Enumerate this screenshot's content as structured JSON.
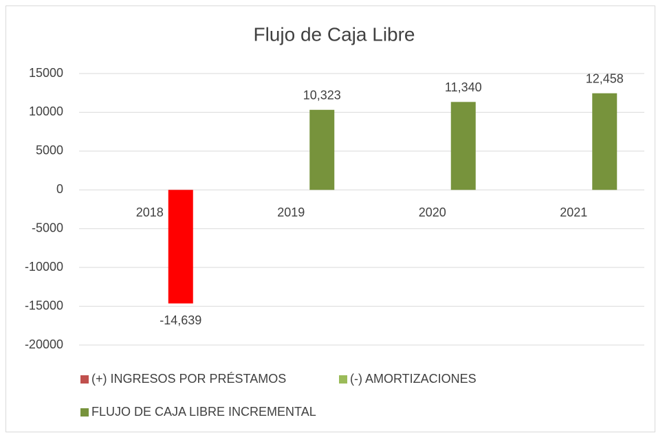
{
  "chart_data": {
    "type": "bar",
    "title": "Flujo de Caja Libre",
    "categories": [
      "2018",
      "2019",
      "2020",
      "2021"
    ],
    "series": [
      {
        "name": "(+) INGRESOS POR PRÉSTAMOS",
        "color": "#c0504d",
        "values": [
          null,
          null,
          null,
          null
        ]
      },
      {
        "name": "(-) AMORTIZACIONES",
        "color": "#9bbb59",
        "values": [
          null,
          null,
          null,
          null
        ]
      },
      {
        "name": "FLUJO DE CAJA LIBRE INCREMENTAL",
        "color": "#77933c",
        "colors": [
          "#ff0000",
          "#77933c",
          "#77933c",
          "#77933c"
        ],
        "values": [
          -14639,
          10323,
          11340,
          12458
        ],
        "value_labels": [
          "-14,639",
          "10,323",
          "11,340",
          "12,458"
        ]
      }
    ],
    "ylim": [
      -20000,
      15000
    ],
    "yticks": [
      -20000,
      -15000,
      -10000,
      -5000,
      0,
      5000,
      10000,
      15000
    ],
    "grid": true,
    "legend": "bottom"
  }
}
